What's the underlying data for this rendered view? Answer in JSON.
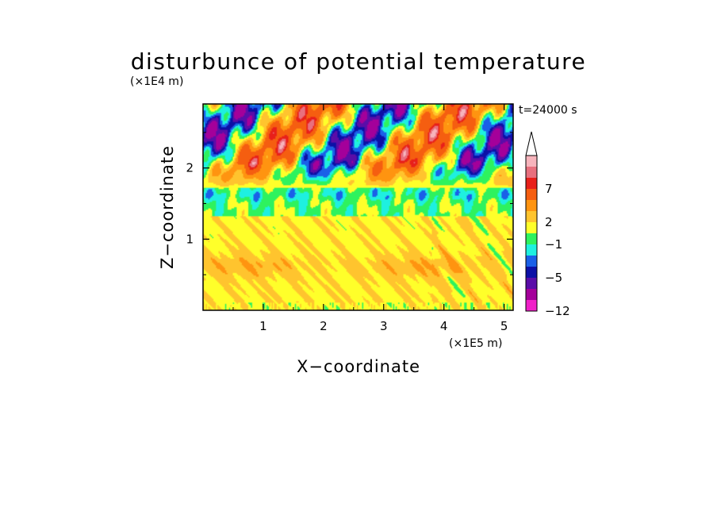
{
  "chart_data": {
    "type": "heatmap",
    "title": "disturbunce of potential temperature",
    "time_label": "t=24000 s",
    "xlabel": "X−coordinate",
    "ylabel": "Z−coordinate",
    "x_unit": "(×1E5 m)",
    "y_unit": "(×1E4 m)",
    "xlim": [
      0,
      5.15
    ],
    "ylim": [
      0,
      2.9
    ],
    "x_ticks": [
      "1",
      "2",
      "3",
      "4",
      "5"
    ],
    "y_ticks": [
      "1",
      "2"
    ],
    "x_tick_values": [
      1,
      2,
      3,
      4,
      5
    ],
    "y_tick_values": [
      1,
      2
    ],
    "colorbar": {
      "labels": [
        "7",
        "2",
        "−1",
        "−5",
        "−12"
      ],
      "label_levels": [
        7,
        2,
        -1,
        -5,
        -12
      ],
      "bins_top_to_bottom": [
        "#f7b4bc",
        "#e8707e",
        "#e8201a",
        "#f55e10",
        "#ff9410",
        "#ffc42e",
        "#ffff2a",
        "#2ef25e",
        "#1ef0e0",
        "#1a60e8",
        "#0c10a6",
        "#5a0da8",
        "#a4009a",
        "#f020c8"
      ],
      "extend": "max"
    },
    "field_description": "warm/neutral layer z<1.3 (values ~0 to 3); alternating warm/cold wave pattern z>1.7 with minima near -5 and maxima near 9"
  }
}
